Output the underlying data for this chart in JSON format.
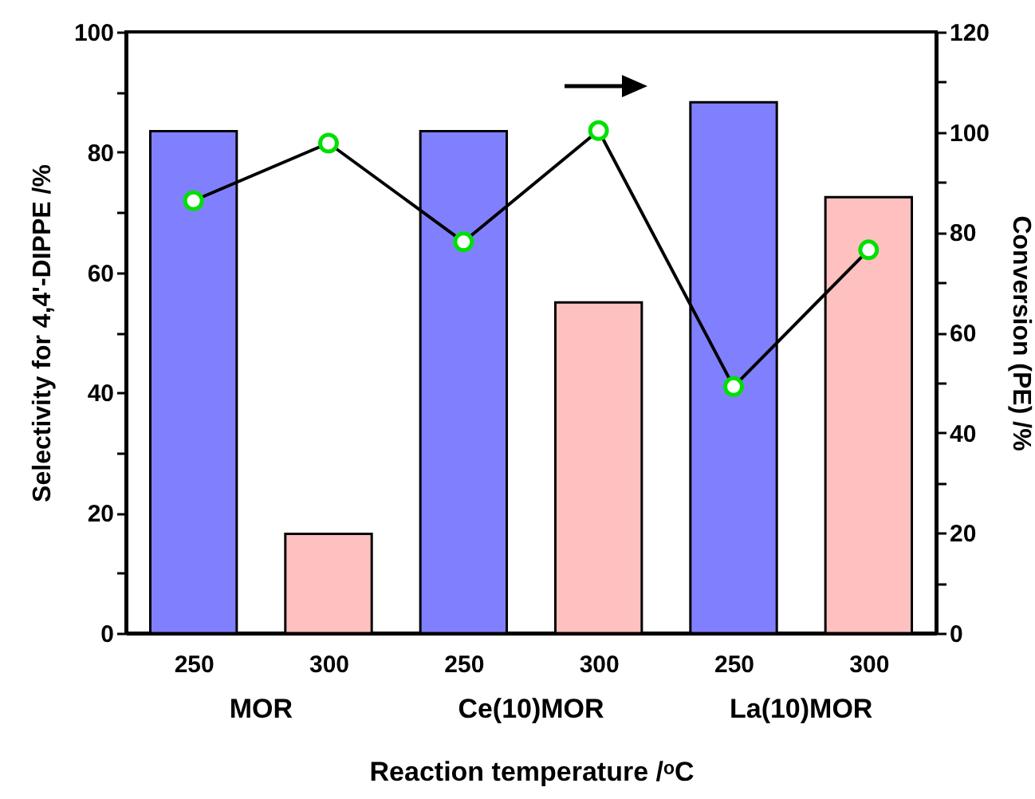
{
  "chart_data": {
    "type": "bar",
    "categories": [
      "250",
      "300",
      "250",
      "300",
      "250",
      "300"
    ],
    "xlabel": "Reaction temperature /ᵒC",
    "ylabel": "Selectivity for 4,4'-DIPPE  /%",
    "y2label": "Conversion (PE) /%",
    "annotations": [
      "MOR",
      "Ce(10)MOR",
      "La(10)MOR"
    ],
    "series": [
      {
        "colors": [
          "#8080ff",
          "#ffc0c0",
          "#8080ff",
          "#ffc0c0",
          "#8080ff",
          "#ffc0c0"
        ],
        "values": [
          83.5,
          16.5,
          83.5,
          55,
          88.3,
          72.5
        ]
      },
      {
        "type": "line",
        "axis": "y2",
        "color": "#00e000",
        "marker": "circle",
        "values": [
          86.3,
          97.8,
          78.1,
          100.3,
          49.2,
          76.5
        ]
      }
    ],
    "ylim": [
      0,
      100
    ],
    "yticks": [
      0,
      {
        "value": 10,
        "label": null
      },
      20,
      {
        "value": 30,
        "label": null
      },
      40,
      {
        "value": 50,
        "label": null
      },
      60,
      {
        "value": 70,
        "label": null
      },
      80,
      {
        "value": 90,
        "label": null
      },
      100
    ],
    "y2lim": [
      0,
      120
    ],
    "y2ticks": [
      0,
      {
        "value": 10,
        "label": null
      },
      20,
      {
        "value": 30,
        "label": null
      },
      40,
      {
        "value": 50,
        "label": null
      },
      60,
      {
        "value": 70,
        "label": null
      },
      80,
      {
        "value": 90,
        "label": null
      },
      100,
      {
        "value": 110,
        "label": null
      },
      120
    ],
    "grid": false
  }
}
